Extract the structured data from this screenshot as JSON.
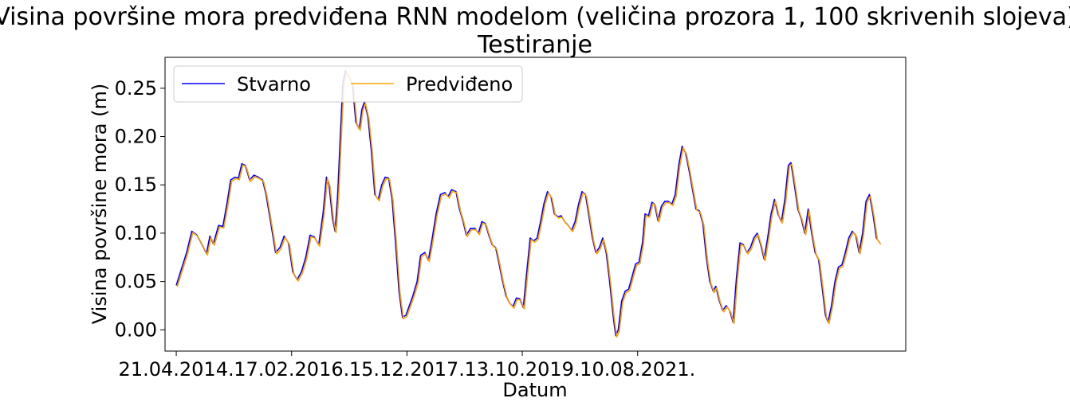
{
  "chart_data": {
    "type": "line",
    "title": "Visina površine mora predviđena RNN modelom (veličina prozora 1, 100 skrivenih slojeva)",
    "subtitle": "Testiranje",
    "xlabel": "Datum",
    "ylabel": "Visina površine mora (m)",
    "x_tick_labels": [
      "21.04.2014.",
      "17.02.2016.",
      "15.12.2017.",
      "13.10.2019.",
      "10.08.2021."
    ],
    "y_ticks": [
      0.0,
      0.05,
      0.1,
      0.15,
      0.2,
      0.25
    ],
    "y_tick_labels": [
      "0.00",
      "0.05",
      "0.10",
      "0.15",
      "0.20",
      "0.25"
    ],
    "ylim": [
      -0.022,
      0.282
    ],
    "xlim": [
      -65,
      4225
    ],
    "x_unit_note": "",
    "legend": {
      "position": "top-left",
      "columns": 2
    },
    "grid": false,
    "series": [
      {
        "name": "Stvarno",
        "color": "#0000ff",
        "points": [
          [
            0,
            0.046
          ],
          [
            60,
            0.08
          ],
          [
            90,
            0.102
          ],
          [
            120,
            0.098
          ],
          [
            150,
            0.088
          ],
          [
            175,
            0.079
          ],
          [
            195,
            0.097
          ],
          [
            215,
            0.089
          ],
          [
            245,
            0.108
          ],
          [
            270,
            0.107
          ],
          [
            295,
            0.132
          ],
          [
            315,
            0.155
          ],
          [
            340,
            0.158
          ],
          [
            360,
            0.157
          ],
          [
            380,
            0.172
          ],
          [
            400,
            0.17
          ],
          [
            425,
            0.155
          ],
          [
            450,
            0.16
          ],
          [
            475,
            0.158
          ],
          [
            500,
            0.155
          ],
          [
            520,
            0.14
          ],
          [
            550,
            0.108
          ],
          [
            575,
            0.08
          ],
          [
            600,
            0.085
          ],
          [
            625,
            0.097
          ],
          [
            650,
            0.09
          ],
          [
            675,
            0.06
          ],
          [
            700,
            0.052
          ],
          [
            725,
            0.06
          ],
          [
            750,
            0.075
          ],
          [
            775,
            0.098
          ],
          [
            800,
            0.096
          ],
          [
            825,
            0.088
          ],
          [
            850,
            0.12
          ],
          [
            870,
            0.158
          ],
          [
            885,
            0.15
          ],
          [
            905,
            0.115
          ],
          [
            920,
            0.102
          ],
          [
            935,
            0.14
          ],
          [
            950,
            0.2
          ],
          [
            965,
            0.255
          ],
          [
            980,
            0.268
          ],
          [
            1000,
            0.262
          ],
          [
            1020,
            0.255
          ],
          [
            1040,
            0.215
          ],
          [
            1060,
            0.208
          ],
          [
            1075,
            0.228
          ],
          [
            1090,
            0.236
          ],
          [
            1110,
            0.22
          ],
          [
            1130,
            0.185
          ],
          [
            1150,
            0.14
          ],
          [
            1170,
            0.135
          ],
          [
            1190,
            0.15
          ],
          [
            1210,
            0.158
          ],
          [
            1230,
            0.157
          ],
          [
            1250,
            0.135
          ],
          [
            1270,
            0.09
          ],
          [
            1290,
            0.04
          ],
          [
            1310,
            0.013
          ],
          [
            1330,
            0.015
          ],
          [
            1350,
            0.025
          ],
          [
            1370,
            0.035
          ],
          [
            1395,
            0.05
          ],
          [
            1415,
            0.077
          ],
          [
            1440,
            0.08
          ],
          [
            1460,
            0.072
          ],
          [
            1480,
            0.092
          ],
          [
            1505,
            0.12
          ],
          [
            1530,
            0.14
          ],
          [
            1555,
            0.142
          ],
          [
            1575,
            0.138
          ],
          [
            1595,
            0.145
          ],
          [
            1620,
            0.143
          ],
          [
            1640,
            0.125
          ],
          [
            1660,
            0.113
          ],
          [
            1680,
            0.098
          ],
          [
            1705,
            0.105
          ],
          [
            1730,
            0.105
          ],
          [
            1750,
            0.1
          ],
          [
            1770,
            0.112
          ],
          [
            1790,
            0.11
          ],
          [
            1810,
            0.098
          ],
          [
            1830,
            0.088
          ],
          [
            1850,
            0.085
          ],
          [
            1870,
            0.068
          ],
          [
            1890,
            0.05
          ],
          [
            1910,
            0.035
          ],
          [
            1930,
            0.028
          ],
          [
            1950,
            0.024
          ],
          [
            1970,
            0.033
          ],
          [
            1990,
            0.032
          ],
          [
            2010,
            0.023
          ],
          [
            2030,
            0.06
          ],
          [
            2050,
            0.095
          ],
          [
            2070,
            0.092
          ],
          [
            2090,
            0.095
          ],
          [
            2110,
            0.112
          ],
          [
            2130,
            0.131
          ],
          [
            2150,
            0.143
          ],
          [
            2170,
            0.138
          ],
          [
            2190,
            0.12
          ],
          [
            2210,
            0.117
          ],
          [
            2230,
            0.118
          ],
          [
            2250,
            0.112
          ],
          [
            2270,
            0.108
          ],
          [
            2290,
            0.103
          ],
          [
            2310,
            0.112
          ],
          [
            2330,
            0.13
          ],
          [
            2350,
            0.143
          ],
          [
            2370,
            0.14
          ],
          [
            2390,
            0.118
          ],
          [
            2410,
            0.095
          ],
          [
            2430,
            0.08
          ],
          [
            2450,
            0.085
          ],
          [
            2470,
            0.095
          ],
          [
            2490,
            0.08
          ],
          [
            2510,
            0.05
          ],
          [
            2530,
            0.015
          ],
          [
            2545,
            -0.006
          ],
          [
            2560,
            0.0
          ],
          [
            2580,
            0.03
          ],
          [
            2600,
            0.04
          ],
          [
            2620,
            0.042
          ],
          [
            2640,
            0.055
          ],
          [
            2660,
            0.068
          ],
          [
            2680,
            0.07
          ],
          [
            2700,
            0.09
          ],
          [
            2715,
            0.12
          ],
          [
            2735,
            0.118
          ],
          [
            2755,
            0.132
          ],
          [
            2770,
            0.13
          ],
          [
            2790,
            0.113
          ],
          [
            2810,
            0.128
          ],
          [
            2830,
            0.133
          ],
          [
            2850,
            0.133
          ],
          [
            2870,
            0.13
          ],
          [
            2890,
            0.14
          ],
          [
            2910,
            0.17
          ],
          [
            2930,
            0.19
          ],
          [
            2950,
            0.183
          ],
          [
            2970,
            0.165
          ],
          [
            2990,
            0.145
          ],
          [
            3010,
            0.125
          ],
          [
            3030,
            0.123
          ],
          [
            3050,
            0.11
          ],
          [
            3070,
            0.075
          ],
          [
            3090,
            0.05
          ],
          [
            3110,
            0.04
          ],
          [
            3125,
            0.045
          ],
          [
            3145,
            0.03
          ],
          [
            3165,
            0.02
          ],
          [
            3185,
            0.025
          ],
          [
            3205,
            0.02
          ],
          [
            3225,
            0.008
          ],
          [
            3245,
            0.055
          ],
          [
            3265,
            0.09
          ],
          [
            3285,
            0.088
          ],
          [
            3305,
            0.08
          ],
          [
            3325,
            0.085
          ],
          [
            3345,
            0.095
          ],
          [
            3365,
            0.1
          ],
          [
            3385,
            0.088
          ],
          [
            3405,
            0.073
          ],
          [
            3425,
            0.095
          ],
          [
            3445,
            0.12
          ],
          [
            3465,
            0.135
          ],
          [
            3485,
            0.12
          ],
          [
            3505,
            0.112
          ],
          [
            3525,
            0.135
          ],
          [
            3545,
            0.17
          ],
          [
            3560,
            0.173
          ],
          [
            3580,
            0.15
          ],
          [
            3600,
            0.125
          ],
          [
            3620,
            0.115
          ],
          [
            3640,
            0.1
          ],
          [
            3660,
            0.125
          ],
          [
            3680,
            0.1
          ],
          [
            3700,
            0.08
          ],
          [
            3720,
            0.073
          ],
          [
            3740,
            0.045
          ],
          [
            3760,
            0.015
          ],
          [
            3775,
            0.008
          ],
          [
            3795,
            0.025
          ],
          [
            3815,
            0.05
          ],
          [
            3835,
            0.065
          ],
          [
            3855,
            0.067
          ],
          [
            3875,
            0.08
          ],
          [
            3895,
            0.095
          ],
          [
            3915,
            0.102
          ],
          [
            3935,
            0.098
          ],
          [
            3955,
            0.08
          ],
          [
            3975,
            0.1
          ],
          [
            3995,
            0.133
          ],
          [
            4015,
            0.14
          ],
          [
            4035,
            0.12
          ],
          [
            4055,
            0.095
          ],
          [
            4075,
            0.09
          ]
        ]
      },
      {
        "name": "Predviđeno",
        "color": "#ffa500",
        "points": []
      }
    ]
  }
}
